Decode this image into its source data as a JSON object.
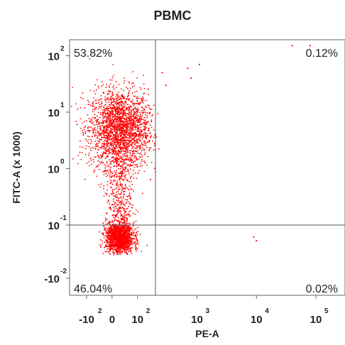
{
  "chart_data": {
    "type": "scatter",
    "title": "PBMC",
    "xlabel": "PE-A",
    "ylabel": "FITC-A (x 1000)",
    "x_scale": "biexponential",
    "y_scale": "log",
    "x_ticks": [
      {
        "value": -100,
        "base": "-10",
        "exp": "2"
      },
      {
        "value": 0,
        "base": "0",
        "exp": ""
      },
      {
        "value": 100,
        "base": "10",
        "exp": "2"
      },
      {
        "value": 1000,
        "base": "10",
        "exp": "3"
      },
      {
        "value": 10000,
        "base": "10",
        "exp": "4"
      },
      {
        "value": 100000,
        "base": "10",
        "exp": "5"
      }
    ],
    "y_ticks": [
      {
        "value": -0.01,
        "base": "-10",
        "exp": "-2"
      },
      {
        "value": 0.1,
        "base": "10",
        "exp": "-1"
      },
      {
        "value": 1,
        "base": "10",
        "exp": "0"
      },
      {
        "value": 10,
        "base": "10",
        "exp": "1"
      },
      {
        "value": 100,
        "base": "10",
        "exp": "2"
      }
    ],
    "gate": {
      "x": 200,
      "y": 0.1
    },
    "quadrants": [
      {
        "position": "top-left",
        "label": "53.82%"
      },
      {
        "position": "top-right",
        "label": "0.12%"
      },
      {
        "position": "bottom-left",
        "label": "46.04%"
      },
      {
        "position": "bottom-right",
        "label": "0.02%"
      }
    ],
    "series": [
      {
        "color": "#ff0000",
        "populations": [
          {
            "x_center": 30,
            "x_spread": 120,
            "y_center": 5,
            "y_spread_decades": 0.35,
            "share": 0.5382
          },
          {
            "x_center": 30,
            "x_spread": 60,
            "y_center": 0.035,
            "y_spread_decades": 0.25,
            "share": 0.4604
          }
        ],
        "outliers": [
          {
            "x": 300,
            "y": 30
          },
          {
            "x": 260,
            "y": 50
          },
          {
            "x": 700,
            "y": 60
          },
          {
            "x": 1100,
            "y": 70
          },
          {
            "x": 800,
            "y": 40
          },
          {
            "x": 40000,
            "y": 150
          },
          {
            "x": 80000,
            "y": 150
          },
          {
            "x": 9000,
            "y": 0.04
          },
          {
            "x": 10000,
            "y": 0.03
          }
        ]
      }
    ],
    "grid": false,
    "legend": "none"
  }
}
